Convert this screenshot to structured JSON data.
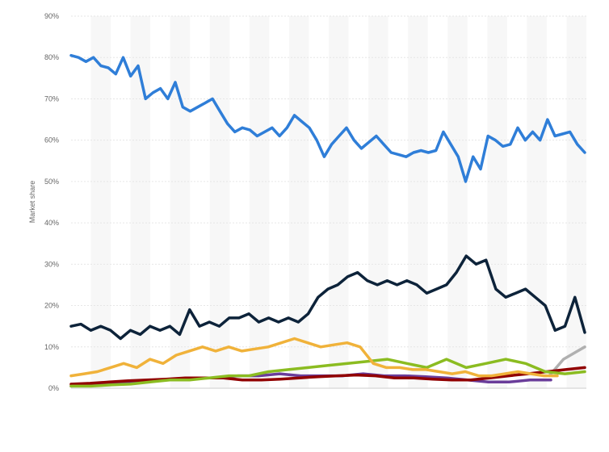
{
  "chart_data": {
    "type": "line",
    "title": "",
    "xlabel": "",
    "ylabel": "Market share",
    "ylim": [
      0,
      90
    ],
    "yticks": [
      "0%",
      "10%",
      "20%",
      "30%",
      "40%",
      "50%",
      "60%",
      "70%",
      "80%",
      "90%"
    ],
    "ytick_values": [
      0,
      10,
      20,
      30,
      40,
      50,
      60,
      70,
      80,
      90
    ],
    "grid": true,
    "legend": "none",
    "series": [
      {
        "color": "#2f7ed8",
        "start_index": 0,
        "values": [
          80.5,
          80,
          79,
          80,
          78,
          77.5,
          76,
          80,
          75.5,
          78,
          70,
          71.5,
          72.5,
          70,
          74,
          68,
          67,
          68,
          69,
          70,
          67,
          64,
          62,
          63,
          62.5,
          61,
          62,
          63,
          61,
          63,
          66,
          64.5,
          63,
          60,
          56,
          59,
          61,
          63,
          60,
          58,
          59.5,
          61,
          59,
          57,
          56.5,
          56,
          57,
          57.5,
          57,
          57.5,
          62,
          59,
          56,
          50,
          56,
          53,
          61,
          60,
          58.5,
          59,
          63,
          60,
          62,
          60,
          65,
          61,
          61.5,
          62,
          59,
          57
        ]
      },
      {
        "color": "#0d233a",
        "start_index": 0,
        "values": [
          15,
          15.5,
          14,
          15,
          14,
          12,
          14,
          13,
          15,
          14,
          15,
          13,
          19,
          15,
          16,
          15,
          17,
          17,
          18,
          16,
          17,
          16,
          17,
          16,
          18,
          22,
          24,
          25,
          27,
          28,
          26,
          25,
          26,
          25,
          26,
          25,
          23,
          24,
          25,
          28,
          32,
          30,
          31,
          24,
          22,
          23,
          24,
          22,
          20,
          14,
          15,
          22,
          13.5
        ]
      },
      {
        "color": "#f0b23a",
        "start_index": 0,
        "values": [
          3,
          3.5,
          4,
          5,
          6,
          5,
          7,
          6,
          8,
          9,
          10,
          9,
          10,
          9,
          9.5,
          10,
          11,
          12,
          11,
          10,
          10.5,
          11,
          10,
          6,
          5,
          5,
          4.5,
          4.5,
          4,
          3.5,
          4,
          3,
          3,
          3.5,
          4,
          3.5,
          3,
          3
        ]
      },
      {
        "color": "#8bbc21",
        "start_index": 0,
        "values": [
          0.5,
          0.5,
          0.8,
          1,
          1.5,
          2,
          2,
          2.5,
          3,
          3,
          4,
          4.5,
          5,
          5.5,
          6,
          6.5,
          7,
          6,
          5,
          7,
          5,
          6,
          7,
          6,
          4,
          3.5,
          4
        ]
      },
      {
        "color": "#910000",
        "start_index": 0,
        "values": [
          1,
          1.2,
          1.5,
          1.8,
          2,
          2.2,
          2.5,
          2.5,
          2.5,
          2,
          2,
          2.2,
          2.5,
          2.8,
          3,
          3.2,
          3,
          2.5,
          2.5,
          2.2,
          2,
          2,
          2.5,
          3,
          3.5,
          4,
          4.5,
          5
        ]
      },
      {
        "color": "#6a3d9a",
        "start_index": 0,
        "values": [
          0.5,
          0.8,
          1,
          1.5,
          2,
          2.2,
          2.5,
          2.5,
          3,
          3,
          3.5,
          3,
          3,
          3,
          3.5,
          3,
          3,
          2.8,
          2.5,
          2,
          1.5,
          1.5,
          2,
          2
        ]
      },
      {
        "color": "#b0b0b0",
        "start_index": 0,
        "values": [
          3,
          5,
          7,
          8,
          9,
          10
        ]
      }
    ]
  }
}
